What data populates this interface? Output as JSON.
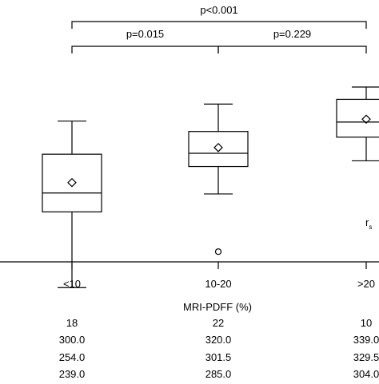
{
  "chart_data": {
    "type": "box",
    "xlabel": "MRI-PDFF (%)",
    "categories": [
      "<10",
      "10-20",
      ">20"
    ],
    "boxes": [
      {
        "category": "<10",
        "whisker_low": 0.08,
        "q1": 0.48,
        "median": 0.58,
        "q3": 0.785,
        "whisker_high": 0.96,
        "mean": 0.635,
        "outliers": []
      },
      {
        "category": "10-20",
        "whisker_low": 0.575,
        "q1": 0.72,
        "median": 0.79,
        "q3": 0.905,
        "whisker_high": 1.05,
        "mean": 0.82,
        "outliers": [
          0.27
        ]
      },
      {
        "category": ">20",
        "whisker_low": 0.75,
        "q1": 0.875,
        "median": 0.955,
        "q3": 1.075,
        "whisker_high": 1.14,
        "mean": 0.97,
        "outliers": []
      }
    ],
    "ylim": [
      -0.4,
      1.6
    ],
    "comparisons": [
      {
        "from": "<10",
        "to": ">20",
        "label": "p<0.001"
      },
      {
        "from": "<10",
        "to": "10-20",
        "label": "p=0.015"
      },
      {
        "from": "10-20",
        "to": ">20",
        "label": "p=0.229"
      }
    ],
    "side_label": "r",
    "side_label_sub": "s"
  },
  "table": {
    "rows": [
      [
        "18",
        "22",
        "10"
      ],
      [
        "300.0",
        "320.0",
        "339.0"
      ],
      [
        "254.0",
        "301.5",
        "329.5"
      ],
      [
        "239.0",
        "285.0",
        "304.0"
      ]
    ]
  }
}
